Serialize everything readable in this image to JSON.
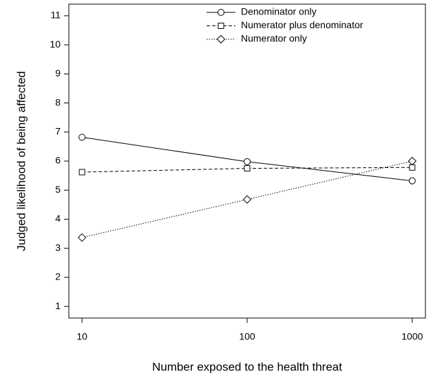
{
  "chart_data": {
    "type": "line",
    "xlabel": "Number exposed to the health threat",
    "ylabel": "Judged likelihood of being affected",
    "x": [
      10,
      100,
      1000
    ],
    "xscale": "log",
    "xlim": [
      8.32,
      1202
    ],
    "xticks": [
      10,
      100,
      1000
    ],
    "ylim": [
      0.6,
      11.4
    ],
    "yticks": [
      1,
      2,
      3,
      4,
      5,
      6,
      7,
      8,
      9,
      10,
      11
    ],
    "legend": "top-right",
    "series": [
      {
        "name": "Denominator only",
        "color": "#000000",
        "marker": "circle",
        "dash": "solid",
        "values": [
          6.82,
          5.98,
          5.32
        ]
      },
      {
        "name": "Numerator plus denominator",
        "color": "#000000",
        "marker": "square",
        "dash": "dashed",
        "values": [
          5.62,
          5.75,
          5.78
        ]
      },
      {
        "name": "Numerator only",
        "color": "#000000",
        "marker": "diamond",
        "dash": "dotted",
        "values": [
          3.37,
          4.68,
          6.0
        ]
      }
    ]
  }
}
